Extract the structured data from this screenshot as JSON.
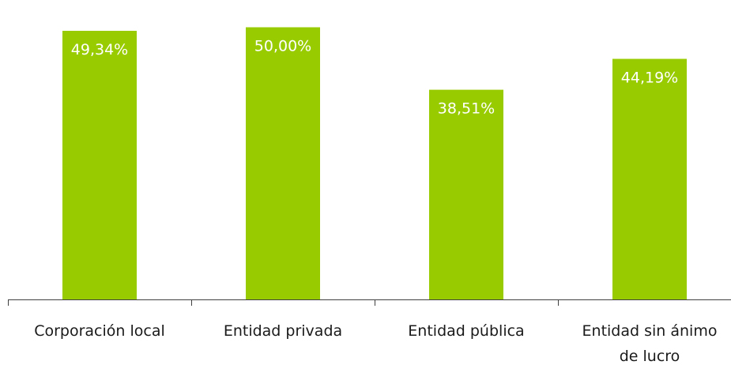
{
  "colors": {
    "bar": "#99cc00",
    "axis": "#404040",
    "data_label": "#ffffff",
    "category_label": "#1a1a1a"
  },
  "chart_data": {
    "type": "bar",
    "title": "",
    "xlabel": "",
    "ylabel": "",
    "categories": [
      [
        "Corporación local"
      ],
      [
        "Entidad privada"
      ],
      [
        "Entidad pública"
      ],
      [
        "Entidad sin ánimo",
        "de lucro"
      ]
    ],
    "values": [
      49.34,
      50.0,
      38.51,
      44.19
    ],
    "data_labels": [
      "49,34%",
      "50,00%",
      "38,51%",
      "44,19%"
    ],
    "value_unit": "%",
    "ylim": [
      0,
      55
    ],
    "grid": false,
    "legend": "none"
  }
}
